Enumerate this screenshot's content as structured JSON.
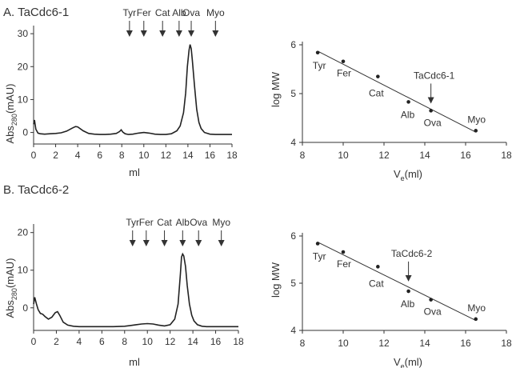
{
  "chart_data": [
    {
      "panel_label": "A. TaCdc6-1",
      "type": "line",
      "xlabel": "ml",
      "ylabel": "Abs280(mAU)",
      "ylabel_main": "Abs",
      "ylabel_sub": "280",
      "ylabel_unit": "(mAU)",
      "xlim": [
        0,
        18
      ],
      "ylim": [
        -3.5,
        31
      ],
      "xticks": [
        0,
        2,
        4,
        6,
        8,
        10,
        12,
        14,
        16,
        18
      ],
      "yticks": [
        0,
        10,
        20,
        30
      ],
      "x": [
        0,
        0.08,
        0.2,
        0.4,
        0.6,
        1.0,
        1.5,
        2.0,
        2.5,
        3.0,
        3.5,
        3.8,
        4.0,
        4.5,
        5.0,
        5.5,
        6.0,
        6.5,
        7.0,
        7.5,
        7.8,
        7.95,
        8.1,
        8.3,
        8.6,
        9.0,
        9.5,
        10.0,
        10.5,
        11.0,
        11.5,
        12.0,
        12.5,
        13.0,
        13.3,
        13.6,
        13.8,
        13.95,
        14.1,
        14.2,
        14.3,
        14.4,
        14.6,
        14.8,
        15.0,
        15.2,
        15.5,
        16.0,
        16.5,
        17.0,
        17.5,
        18.0
      ],
      "y": [
        2.5,
        3.8,
        1.0,
        -0.2,
        -0.4,
        -0.5,
        -0.4,
        -0.3,
        -0.1,
        0.4,
        1.3,
        1.8,
        1.7,
        0.5,
        -0.3,
        -0.5,
        -0.6,
        -0.6,
        -0.5,
        -0.3,
        0.3,
        0.8,
        0.1,
        -0.4,
        -0.6,
        -0.5,
        -0.2,
        0.0,
        -0.2,
        -0.5,
        -0.6,
        -0.6,
        -0.4,
        0.5,
        2.0,
        6.0,
        12.0,
        20.0,
        25.0,
        26.7,
        25.5,
        22.0,
        14.0,
        7.0,
        3.0,
        1.2,
        0.0,
        -0.5,
        -0.6,
        -0.6,
        -0.6,
        -0.6
      ],
      "markers": [
        {
          "label": "Tyr",
          "x": 8.7
        },
        {
          "label": "Fer",
          "x": 10.0
        },
        {
          "label": "Cat",
          "x": 11.7
        },
        {
          "label": "Alb",
          "x": 13.2
        },
        {
          "label": "Ova",
          "x": 14.3
        },
        {
          "label": "Myo",
          "x": 16.5
        }
      ]
    },
    {
      "type": "scatter",
      "xlabel": "Ve(ml)",
      "xlabel_main": "V",
      "xlabel_sub": "e",
      "xlabel_unit": "(ml)",
      "ylabel": "log MW",
      "xlim": [
        8,
        18
      ],
      "ylim": [
        4,
        6
      ],
      "xticks": [
        8,
        10,
        12,
        14,
        16,
        18
      ],
      "yticks": [
        4,
        5,
        6
      ],
      "points": [
        {
          "label": "Tyr",
          "x": 8.75,
          "y": 5.84
        },
        {
          "label": "Fer",
          "x": 10.0,
          "y": 5.66
        },
        {
          "label": "Cat",
          "x": 11.7,
          "y": 5.35
        },
        {
          "label": "Alb",
          "x": 13.2,
          "y": 4.83
        },
        {
          "label": "Ova",
          "x": 14.3,
          "y": 4.65
        },
        {
          "label": "Myo",
          "x": 16.5,
          "y": 4.24
        }
      ],
      "fit": {
        "x": [
          8.75,
          16.5
        ],
        "y": [
          5.87,
          4.21
        ]
      },
      "annotation": {
        "label": "TaCdc6-1",
        "x": 14.3
      }
    },
    {
      "panel_label": "B. TaCdc6-2",
      "type": "line",
      "xlabel": "ml",
      "ylabel": "Abs280(mAU)",
      "ylabel_main": "Abs",
      "ylabel_sub": "280",
      "ylabel_unit": "(mAU)",
      "xlim": [
        0,
        18
      ],
      "ylim": [
        -6,
        21
      ],
      "xticks": [
        0,
        2,
        4,
        6,
        8,
        10,
        12,
        14,
        16,
        18
      ],
      "yticks": [
        0,
        10,
        20
      ],
      "x": [
        0,
        0.1,
        0.25,
        0.4,
        0.6,
        0.8,
        1.0,
        1.3,
        1.6,
        1.9,
        2.1,
        2.3,
        2.6,
        3.0,
        3.5,
        4.0,
        5.0,
        6.0,
        7.0,
        8.0,
        8.5,
        9.0,
        9.5,
        10.0,
        10.5,
        11.0,
        11.5,
        12.0,
        12.4,
        12.7,
        12.9,
        13.0,
        13.1,
        13.2,
        13.35,
        13.5,
        13.7,
        13.9,
        14.1,
        14.4,
        14.8,
        15.2,
        16.0,
        17.0,
        18.0
      ],
      "y": [
        1.0,
        2.8,
        1.0,
        -0.5,
        -1.5,
        -1.7,
        -2.3,
        -3.0,
        -2.5,
        -1.3,
        -1.0,
        -2.0,
        -3.8,
        -4.6,
        -4.9,
        -5.0,
        -5.0,
        -5.0,
        -5.0,
        -4.9,
        -4.7,
        -4.5,
        -4.3,
        -4.2,
        -4.3,
        -4.6,
        -4.8,
        -4.5,
        -3.0,
        1.0,
        9.0,
        13.5,
        14.3,
        13.8,
        11.0,
        6.0,
        1.0,
        -2.0,
        -3.5,
        -4.5,
        -4.9,
        -5.0,
        -5.0,
        -5.0,
        -5.0
      ],
      "markers": [
        {
          "label": "Tyr",
          "x": 8.7
        },
        {
          "label": "Fer",
          "x": 9.9
        },
        {
          "label": "Cat",
          "x": 11.5
        },
        {
          "label": "Alb",
          "x": 13.1
        },
        {
          "label": "Ova",
          "x": 14.5
        },
        {
          "label": "Myo",
          "x": 16.5
        }
      ]
    },
    {
      "type": "scatter",
      "xlabel": "Ve(ml)",
      "xlabel_main": "V",
      "xlabel_sub": "e",
      "xlabel_unit": "(ml)",
      "ylabel": "log MW",
      "xlim": [
        8,
        18
      ],
      "ylim": [
        4,
        6
      ],
      "xticks": [
        8,
        10,
        12,
        14,
        16,
        18
      ],
      "yticks": [
        4,
        5,
        6
      ],
      "points": [
        {
          "label": "Tyr",
          "x": 8.75,
          "y": 5.84
        },
        {
          "label": "Fer",
          "x": 10.0,
          "y": 5.66
        },
        {
          "label": "Cat",
          "x": 11.7,
          "y": 5.35
        },
        {
          "label": "Alb",
          "x": 13.2,
          "y": 4.83
        },
        {
          "label": "Ova",
          "x": 14.3,
          "y": 4.65
        },
        {
          "label": "Myo",
          "x": 16.5,
          "y": 4.24
        }
      ],
      "fit": {
        "x": [
          8.75,
          16.5
        ],
        "y": [
          5.87,
          4.21
        ]
      },
      "annotation": {
        "label": "TaCdc6-2",
        "x": 13.2
      }
    }
  ]
}
